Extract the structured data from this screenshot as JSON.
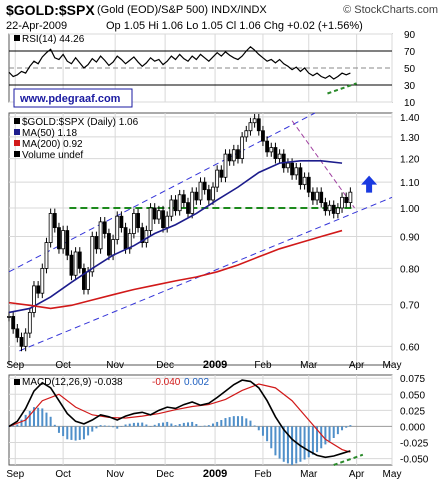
{
  "header": {
    "symbol": "$GOLD:$SPX",
    "description": "(Gold (EOD)/S&P 500)  INDX/INDX",
    "brand": "© StockCharts.com",
    "date": "22-Apr-2009",
    "ohlc": "Op 1.05  Hi 1.06  Lo 1.05  Cl 1.06  Chg +0.02 (+1.56%)"
  },
  "watermark": "www.pdegraaf.com",
  "x_axis": {
    "labels": [
      "Sep",
      "Oct",
      "Nov",
      "Dec",
      "2009",
      "Feb",
      "Mar",
      "Apr",
      "May"
    ]
  },
  "chart_data": [
    {
      "type": "line",
      "panel": "RSI",
      "legend": [
        "RSI(14) 44.26"
      ],
      "ylim": [
        10,
        90
      ],
      "yticks": [
        10,
        30,
        50,
        70,
        90
      ],
      "ytick_labels": [
        "10",
        "30",
        "50",
        "70",
        "90"
      ],
      "overbought": 70,
      "oversold": 30,
      "series": [
        {
          "name": "RSI(14)",
          "color": "#000000",
          "x": [
            0,
            2,
            4,
            6,
            8,
            10,
            12,
            14,
            16,
            18,
            20,
            22,
            24,
            26,
            28,
            30,
            32,
            34,
            36,
            38,
            40,
            42,
            44,
            46,
            48,
            50,
            52,
            54,
            56,
            58,
            60,
            62,
            64,
            66,
            68,
            70,
            72,
            74,
            76,
            78,
            80,
            82,
            84,
            86,
            88,
            90,
            92,
            94,
            96,
            98,
            100,
            102,
            104,
            106,
            108,
            110,
            112,
            114,
            116,
            118,
            120,
            122,
            124,
            126,
            128,
            130,
            132,
            134,
            136,
            138,
            140,
            142,
            144,
            146,
            148,
            150,
            152,
            154,
            156,
            158,
            160,
            162,
            164
          ],
          "values": [
            45,
            40,
            42,
            46,
            44,
            52,
            58,
            55,
            63,
            68,
            72,
            62,
            60,
            66,
            58,
            55,
            62,
            56,
            50,
            54,
            61,
            57,
            64,
            59,
            53,
            57,
            64,
            60,
            55,
            59,
            63,
            57,
            52,
            56,
            62,
            58,
            60,
            54,
            58,
            64,
            60,
            66,
            61,
            58,
            64,
            60,
            66,
            62,
            58,
            63,
            68,
            64,
            69,
            65,
            62,
            60,
            64,
            70,
            75,
            71,
            66,
            62,
            58,
            60,
            56,
            60,
            55,
            52,
            48,
            51,
            46,
            50,
            44,
            41,
            44,
            40,
            38,
            41,
            37,
            40,
            44,
            42,
            44
          ]
        }
      ]
    },
    {
      "type": "candlestick",
      "panel": "Price",
      "legend": [
        "$GOLD:$SPX (Daily) 1.06",
        "MA(50) 1.18",
        "MA(200) 0.92",
        "Volume undef"
      ],
      "ylim": [
        0.56,
        1.42
      ],
      "log_scale": true,
      "yticks": [
        0.6,
        0.7,
        0.8,
        0.9,
        1.0,
        1.1,
        1.2,
        1.3,
        1.4
      ],
      "ytick_labels": [
        "0.60",
        "0.70",
        "0.80",
        "0.90",
        "1.00",
        "1.10",
        "1.20",
        "1.30",
        "1.40"
      ],
      "close_series": {
        "x": [
          0,
          2,
          4,
          6,
          8,
          10,
          12,
          14,
          16,
          18,
          20,
          22,
          24,
          26,
          28,
          30,
          32,
          34,
          36,
          38,
          40,
          42,
          44,
          46,
          48,
          50,
          52,
          54,
          56,
          58,
          60,
          62,
          64,
          66,
          68,
          70,
          72,
          74,
          76,
          78,
          80,
          82,
          84,
          86,
          88,
          90,
          92,
          94,
          96,
          98,
          100,
          102,
          104,
          106,
          108,
          110,
          112,
          114,
          116,
          118,
          120,
          122,
          124,
          126,
          128,
          130,
          132,
          134,
          136,
          138,
          140,
          142,
          144,
          146,
          148,
          150,
          152,
          154,
          156,
          158,
          160,
          162,
          164
        ],
        "values": [
          0.67,
          0.64,
          0.62,
          0.6,
          0.63,
          0.68,
          0.75,
          0.73,
          0.8,
          0.88,
          0.98,
          0.93,
          0.86,
          0.92,
          0.84,
          0.78,
          0.85,
          0.8,
          0.74,
          0.79,
          0.9,
          0.86,
          0.95,
          0.91,
          0.84,
          0.89,
          0.97,
          0.93,
          0.86,
          0.91,
          0.98,
          0.93,
          0.88,
          0.92,
          1.0,
          0.96,
          0.99,
          0.93,
          0.97,
          1.03,
          0.99,
          1.05,
          1.02,
          0.98,
          1.06,
          1.03,
          1.1,
          1.07,
          1.03,
          1.08,
          1.15,
          1.12,
          1.22,
          1.19,
          1.24,
          1.2,
          1.3,
          1.33,
          1.37,
          1.39,
          1.33,
          1.28,
          1.23,
          1.25,
          1.2,
          1.22,
          1.16,
          1.18,
          1.13,
          1.16,
          1.09,
          1.12,
          1.06,
          1.03,
          1.06,
          1.02,
          0.99,
          1.01,
          0.98,
          1.0,
          1.04,
          1.02,
          1.06
        ]
      },
      "series": [
        {
          "name": "MA(50)",
          "color": "#1c1c8c",
          "x": [
            0,
            10,
            20,
            30,
            40,
            50,
            60,
            70,
            80,
            90,
            100,
            110,
            120,
            130,
            140,
            150,
            160
          ],
          "values": [
            0.68,
            0.69,
            0.72,
            0.76,
            0.8,
            0.84,
            0.87,
            0.91,
            0.94,
            0.98,
            1.03,
            1.08,
            1.14,
            1.18,
            1.19,
            1.19,
            1.18
          ]
        },
        {
          "name": "MA(200)",
          "color": "#d11919",
          "x": [
            0,
            10,
            20,
            30,
            40,
            50,
            60,
            70,
            80,
            90,
            100,
            110,
            120,
            130,
            140,
            150,
            160
          ],
          "values": [
            0.705,
            0.698,
            0.69,
            0.698,
            0.712,
            0.726,
            0.74,
            0.752,
            0.764,
            0.775,
            0.79,
            0.81,
            0.835,
            0.86,
            0.88,
            0.9,
            0.92
          ]
        }
      ],
      "annotations": {
        "support_level": 1.0
      }
    },
    {
      "type": "line",
      "panel": "MACD",
      "legend": [
        "MACD(12,26,9) -0.038",
        "-0.040",
        "0.002"
      ],
      "ylim": [
        -0.06,
        0.08
      ],
      "yticks": [
        -0.05,
        -0.025,
        0,
        0.025,
        0.05,
        0.075
      ],
      "ytick_labels": [
        "-0.050",
        "-0.025",
        "0.000",
        "0.025",
        "0.050",
        "0.075"
      ],
      "series": [
        {
          "name": "MACD",
          "color": "#000000",
          "x": [
            0,
            4,
            8,
            12,
            16,
            20,
            24,
            28,
            32,
            36,
            40,
            44,
            48,
            52,
            56,
            60,
            64,
            68,
            72,
            76,
            80,
            84,
            88,
            92,
            96,
            100,
            104,
            108,
            112,
            116,
            120,
            124,
            128,
            132,
            136,
            140,
            144,
            148,
            152,
            156,
            160,
            164
          ],
          "values": [
            0.0,
            0.008,
            0.028,
            0.055,
            0.068,
            0.06,
            0.04,
            0.02,
            0.008,
            0.004,
            0.01,
            0.018,
            0.015,
            0.01,
            0.016,
            0.02,
            0.022,
            0.018,
            0.025,
            0.03,
            0.028,
            0.034,
            0.038,
            0.033,
            0.036,
            0.045,
            0.055,
            0.065,
            0.072,
            0.07,
            0.06,
            0.04,
            0.015,
            -0.005,
            -0.02,
            -0.03,
            -0.038,
            -0.045,
            -0.048,
            -0.046,
            -0.042,
            -0.038
          ]
        },
        {
          "name": "Signal",
          "color": "#d11919",
          "x": [
            0,
            8,
            16,
            24,
            32,
            40,
            48,
            56,
            64,
            72,
            80,
            88,
            96,
            104,
            112,
            120,
            128,
            136,
            144,
            152,
            160,
            164
          ],
          "values": [
            0.0,
            0.01,
            0.04,
            0.05,
            0.03,
            0.018,
            0.014,
            0.013,
            0.016,
            0.02,
            0.026,
            0.031,
            0.034,
            0.042,
            0.056,
            0.066,
            0.06,
            0.04,
            0.01,
            -0.02,
            -0.036,
            -0.04
          ]
        }
      ],
      "histogram_color": "#4f8fc9"
    }
  ]
}
